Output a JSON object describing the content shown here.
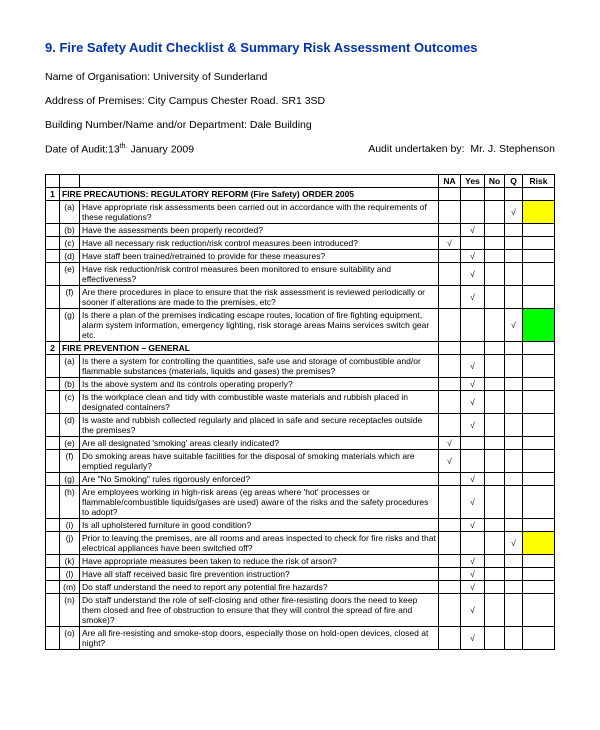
{
  "title": "9.     Fire Safety Audit Checklist & Summary Risk Assessment Outcomes",
  "meta": {
    "org_label": "Name of Organisation:",
    "org_value": "University of Sunderland",
    "addr_label": "Address of Premises:",
    "addr_value": "City Campus Chester Road. SR1 3SD",
    "bldg_label": "Building Number/Name and/or Department:",
    "bldg_value": "Dale Building",
    "date_label": "Date of Audit:",
    "date_value_pre": "13",
    "date_value_sup": "th.",
    "date_value_post": " January 2009",
    "auditor_label": "Audit undertaken by:",
    "auditor_value": "Mr. J. Stephenson"
  },
  "columns": {
    "na": "NA",
    "yes": "Yes",
    "no": "No",
    "q": "Q",
    "risk": "Risk"
  },
  "colors": {
    "yellow": "#ffff00",
    "green": "#00ff00"
  },
  "sections": [
    {
      "num": "1",
      "label": "FIRE PRECAUTIONS: REGULATORY REFORM (Fire Safety) ORDER 2005",
      "rows": [
        {
          "let": "(a)",
          "text": "Have appropriate risk assessments been carried out in accordance with the requirements of these regulations?",
          "q": true,
          "risk": "yellow"
        },
        {
          "let": "(b)",
          "text": "Have the assessments been properly recorded?",
          "yes": true
        },
        {
          "let": "(c)",
          "text": "Have all necessary risk reduction/risk control measures been introduced?",
          "na": true
        },
        {
          "let": "(d)",
          "text": "Have staff been trained/retrained to provide for these measures?",
          "yes": true
        },
        {
          "let": "(e)",
          "text": "Have risk reduction/risk control measures been monitored to ensure suitability and effectiveness?",
          "yes": true
        },
        {
          "let": "(f)",
          "text": "Are there procedures in place to ensure that the risk assessment is reviewed periodically or sooner if alterations are made to the premises, etc?",
          "yes": true
        },
        {
          "let": "(g)",
          "text": "Is there a plan of the premises indicating escape routes, location of fire fighting equipment, alarm system information, emergency lighting, risk storage areas Mains services switch gear etc.",
          "q": true,
          "risk": "green"
        }
      ]
    },
    {
      "num": "2",
      "label": "FIRE PREVENTION – GENERAL",
      "rows": [
        {
          "let": "(a)",
          "text": "Is there a system for controlling the quantities, safe use and storage of combustible and/or flammable substances (materials, liquids and gases) the premises?",
          "yes": true
        },
        {
          "let": "(b)",
          "text": "Is the above system and its controls operating properly?",
          "yes": true
        },
        {
          "let": "(c)",
          "text": "Is the workplace clean and tidy with combustible waste materials and rubbish placed in designated containers?",
          "yes": true
        },
        {
          "let": "(d)",
          "text": "Is waste and rubbish collected regularly and placed in safe and secure receptacles outside the premises?",
          "yes": true
        },
        {
          "let": "(e)",
          "text": "Are all designated 'smoking' areas clearly indicated?",
          "na": true
        },
        {
          "let": "(f)",
          "text": "Do smoking areas have suitable facilities for the disposal of smoking materials which are emptied regularly?",
          "na": true
        },
        {
          "let": "(g)",
          "text": "Are \"No Smoking\" rules rigorously enforced?",
          "yes": true
        },
        {
          "let": "(h)",
          "text": "Are employees working in high-risk areas (eg areas where 'hot' processes or flammable/combustible liquids/gases are used) aware of the risks and the safety procedures to adopt?",
          "yes": true
        },
        {
          "let": "(i)",
          "text": "Is all upholstered furniture in good condition?",
          "yes": true
        },
        {
          "let": "(j)",
          "text": "Prior to leaving the premises, are all rooms and areas inspected to check for fire risks and that electrical appliances have been switched off?",
          "q": true,
          "risk": "yellow"
        },
        {
          "let": "(k)",
          "text": "Have appropriate measures been taken to reduce the risk of arson?",
          "yes": true
        },
        {
          "let": "(l)",
          "text": "Have all staff received basic fire prevention instruction?",
          "yes": true
        },
        {
          "let": "(m)",
          "text": "Do staff understand the need to report any potential fire hazards?",
          "yes": true
        },
        {
          "let": "(n)",
          "text": "Do staff understand the role of self-closing and other fire-resisting doors the need to keep them closed and free of obstruction to ensure that they will control the spread of fire and smoke)?",
          "yes": true
        },
        {
          "let": "(o)",
          "text": "Are all fire-resisting and smoke-stop doors, especially those on hold-open devices, closed at night?",
          "yes": true
        }
      ]
    }
  ]
}
